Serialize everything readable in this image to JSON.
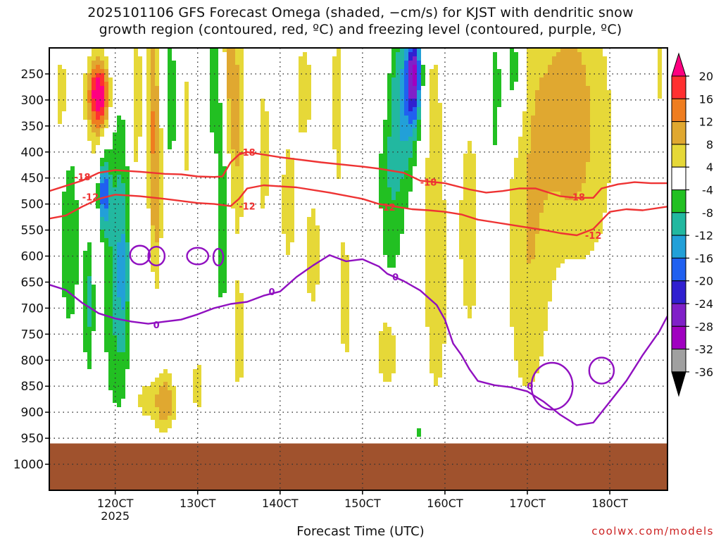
{
  "header": {
    "title_line1": "2025101106 GFS Forecast Omega (shaded, −cm/s) for KJST with dendritic snow",
    "title_line2": "growth region (contoured, red, ºC) and freezing level (contoured, purple, ºC)"
  },
  "footer": {
    "xlabel": "Forecast Time (UTC)",
    "source": "coolwx.com/models"
  },
  "chart_data": {
    "type": "heatmap",
    "x_ticks": [
      {
        "value": 120,
        "label": "120CT",
        "sublabel": "2025"
      },
      {
        "value": 130,
        "label": "130CT",
        "sublabel": ""
      },
      {
        "value": 140,
        "label": "140CT",
        "sublabel": ""
      },
      {
        "value": 150,
        "label": "150CT",
        "sublabel": ""
      },
      {
        "value": 160,
        "label": "160CT",
        "sublabel": ""
      },
      {
        "value": 170,
        "label": "170CT",
        "sublabel": ""
      },
      {
        "value": 180,
        "label": "180CT",
        "sublabel": ""
      }
    ],
    "xlim": [
      112,
      187
    ],
    "y_ticks": [
      250,
      300,
      350,
      400,
      450,
      500,
      550,
      600,
      650,
      700,
      750,
      800,
      850,
      900,
      950,
      1000
    ],
    "ylim": [
      200,
      1050
    ],
    "surface_level": 960,
    "colorbar": {
      "labels": [
        "20",
        "16",
        "12",
        "8",
        "4",
        "-4",
        "-8",
        "-12",
        "-16",
        "-20",
        "-24",
        "-28",
        "-32",
        "-36"
      ],
      "colors": [
        "#ff0080",
        "#ff3030",
        "#ef7d20",
        "#e0a830",
        "#e6d838",
        "#ffffff",
        "#22c022",
        "#22b8a0",
        "#22a0d8",
        "#2060f0",
        "#3020d0",
        "#8020c8",
        "#a000c0",
        "#a0a0a0",
        "#000000"
      ]
    },
    "omega_blobs": [
      {
        "x": 118,
        "p": 290,
        "sx": 0.9,
        "sp": 45,
        "v": 22
      },
      {
        "x": 118.5,
        "p": 420,
        "sx": 1.5,
        "sp": 180,
        "v": 6
      },
      {
        "x": 113.5,
        "p": 300,
        "sx": 0.7,
        "sp": 90,
        "v": 6
      },
      {
        "x": 120,
        "p": 560,
        "sx": 1.2,
        "sp": 220,
        "v": -12
      },
      {
        "x": 118.6,
        "p": 480,
        "sx": 0.5,
        "sp": 50,
        "v": -20
      },
      {
        "x": 114.5,
        "p": 560,
        "sx": 0.9,
        "sp": 140,
        "v": -8
      },
      {
        "x": 116.8,
        "p": 680,
        "sx": 0.5,
        "sp": 100,
        "v": -10
      },
      {
        "x": 122.5,
        "p": 300,
        "sx": 0.5,
        "sp": 120,
        "v": 8
      },
      {
        "x": 124.5,
        "p": 300,
        "sx": 0.6,
        "sp": 150,
        "v": 10
      },
      {
        "x": 125,
        "p": 500,
        "sx": 0.5,
        "sp": 130,
        "v": 8
      },
      {
        "x": 126,
        "p": 880,
        "sx": 0.9,
        "sp": 40,
        "v": 12
      },
      {
        "x": 123.5,
        "p": 880,
        "sx": 0.9,
        "sp": 40,
        "v": 5
      },
      {
        "x": 121,
        "p": 650,
        "sx": 0.5,
        "sp": 120,
        "v": -6
      },
      {
        "x": 126.8,
        "p": 300,
        "sx": 0.4,
        "sp": 90,
        "v": -8
      },
      {
        "x": 128.5,
        "p": 350,
        "sx": 0.5,
        "sp": 150,
        "v": 5
      },
      {
        "x": 132,
        "p": 280,
        "sx": 0.5,
        "sp": 80,
        "v": -8
      },
      {
        "x": 133,
        "p": 470,
        "sx": 0.5,
        "sp": 180,
        "v": -9
      },
      {
        "x": 134,
        "p": 250,
        "sx": 0.9,
        "sp": 150,
        "v": 10
      },
      {
        "x": 135,
        "p": 420,
        "sx": 0.6,
        "sp": 120,
        "v": 5
      },
      {
        "x": 130,
        "p": 850,
        "sx": 1.0,
        "sp": 60,
        "v": 5
      },
      {
        "x": 135,
        "p": 760,
        "sx": 0.6,
        "sp": 100,
        "v": 6
      },
      {
        "x": 138,
        "p": 400,
        "sx": 0.8,
        "sp": 160,
        "v": 5
      },
      {
        "x": 141,
        "p": 500,
        "sx": 1.0,
        "sp": 150,
        "v": 5
      },
      {
        "x": 143,
        "p": 280,
        "sx": 0.8,
        "sp": 80,
        "v": 6
      },
      {
        "x": 144,
        "p": 600,
        "sx": 0.8,
        "sp": 100,
        "v": 6
      },
      {
        "x": 147,
        "p": 300,
        "sx": 0.8,
        "sp": 200,
        "v": 5
      },
      {
        "x": 148,
        "p": 700,
        "sx": 0.8,
        "sp": 120,
        "v": 5
      },
      {
        "x": 153,
        "p": 780,
        "sx": 1.0,
        "sp": 60,
        "v": 8
      },
      {
        "x": 155.5,
        "p": 300,
        "sx": 1.1,
        "sp": 110,
        "v": -12
      },
      {
        "x": 156.3,
        "p": 250,
        "sx": 0.6,
        "sp": 60,
        "v": -22
      },
      {
        "x": 153.5,
        "p": 420,
        "sx": 1.2,
        "sp": 180,
        "v": -8
      },
      {
        "x": 152.5,
        "p": 250,
        "sx": 0.6,
        "sp": 80,
        "v": 5
      },
      {
        "x": 158.5,
        "p": 380,
        "sx": 1.3,
        "sp": 250,
        "v": 5
      },
      {
        "x": 159,
        "p": 720,
        "sx": 1.0,
        "sp": 150,
        "v": 4.5
      },
      {
        "x": 163,
        "p": 550,
        "sx": 1.5,
        "sp": 250,
        "v": 5
      },
      {
        "x": 166,
        "p": 320,
        "sx": 0.8,
        "sp": 150,
        "v": -6
      },
      {
        "x": 168.5,
        "p": 250,
        "sx": 1.0,
        "sp": 90,
        "v": -9
      },
      {
        "x": 170.5,
        "p": 350,
        "sx": 2.2,
        "sp": 220,
        "v": 7
      },
      {
        "x": 170,
        "p": 700,
        "sx": 2.0,
        "sp": 180,
        "v": 5
      },
      {
        "x": 175,
        "p": 330,
        "sx": 2.0,
        "sp": 150,
        "v": 8
      },
      {
        "x": 178,
        "p": 380,
        "sx": 3.0,
        "sp": 250,
        "v": 4.8
      },
      {
        "x": 186,
        "p": 250,
        "sx": 0.4,
        "sp": 80,
        "v": 4.8
      },
      {
        "x": 157,
        "p": 940,
        "sx": 0.4,
        "sp": 15,
        "v": -6
      },
      {
        "x": 170,
        "p": 940,
        "sx": 0.4,
        "sp": 15,
        "v": -6
      }
    ],
    "dgz_contours": [
      {
        "label": "-18",
        "label_positions": [
          [
            116,
            448
          ],
          [
            136,
            400
          ],
          [
            158,
            458
          ],
          [
            176,
            486
          ]
        ],
        "points": [
          [
            112,
            475
          ],
          [
            114,
            465
          ],
          [
            116,
            455
          ],
          [
            118,
            440
          ],
          [
            120,
            435
          ],
          [
            123,
            438
          ],
          [
            126,
            442
          ],
          [
            128,
            443
          ],
          [
            130,
            447
          ],
          [
            132,
            448
          ],
          [
            133,
            447
          ],
          [
            134,
            420
          ],
          [
            135,
            405
          ],
          [
            136,
            400
          ],
          [
            140,
            410
          ],
          [
            145,
            420
          ],
          [
            150,
            428
          ],
          [
            152,
            432
          ],
          [
            155,
            440
          ],
          [
            157,
            455
          ],
          [
            160,
            460
          ],
          [
            163,
            472
          ],
          [
            165,
            478
          ],
          [
            167,
            475
          ],
          [
            169,
            470
          ],
          [
            171,
            470
          ],
          [
            172,
            475
          ],
          [
            174,
            485
          ],
          [
            176,
            488
          ],
          [
            178,
            488
          ],
          [
            179,
            470
          ],
          [
            181,
            462
          ],
          [
            183,
            458
          ],
          [
            185,
            460
          ],
          [
            187,
            460
          ]
        ]
      },
      {
        "label": "-12",
        "label_positions": [
          [
            117,
            486
          ],
          [
            136,
            504
          ],
          [
            153,
            506
          ],
          [
            178,
            560
          ]
        ],
        "points": [
          [
            112,
            528
          ],
          [
            114,
            522
          ],
          [
            116,
            505
          ],
          [
            118,
            490
          ],
          [
            120,
            482
          ],
          [
            123,
            485
          ],
          [
            126,
            490
          ],
          [
            130,
            498
          ],
          [
            132,
            500
          ],
          [
            134,
            504
          ],
          [
            135,
            490
          ],
          [
            136,
            470
          ],
          [
            138,
            464
          ],
          [
            142,
            468
          ],
          [
            146,
            478
          ],
          [
            150,
            490
          ],
          [
            152,
            500
          ],
          [
            154,
            505
          ],
          [
            156,
            510
          ],
          [
            158,
            512
          ],
          [
            160,
            515
          ],
          [
            162,
            520
          ],
          [
            164,
            530
          ],
          [
            166,
            535
          ],
          [
            168,
            540
          ],
          [
            170,
            545
          ],
          [
            172,
            550
          ],
          [
            174,
            556
          ],
          [
            176,
            560
          ],
          [
            178,
            548
          ],
          [
            180,
            515
          ],
          [
            182,
            510
          ],
          [
            184,
            512
          ],
          [
            187,
            505
          ]
        ]
      }
    ],
    "freezing_contours": [
      {
        "label": "0",
        "label_positions": [
          [
            125,
            732
          ],
          [
            139,
            668
          ],
          [
            154,
            640
          ]
        ],
        "points": [
          [
            112,
            655
          ],
          [
            114,
            665
          ],
          [
            116,
            690
          ],
          [
            118,
            710
          ],
          [
            120,
            720
          ],
          [
            122,
            726
          ],
          [
            124,
            730
          ],
          [
            126,
            726
          ],
          [
            128,
            722
          ],
          [
            130,
            712
          ],
          [
            132,
            700
          ],
          [
            134,
            692
          ],
          [
            136,
            688
          ],
          [
            138,
            676
          ],
          [
            140,
            668
          ],
          [
            142,
            640
          ],
          [
            144,
            618
          ],
          [
            146,
            598
          ],
          [
            148,
            610
          ],
          [
            150,
            606
          ],
          [
            152,
            620
          ],
          [
            153,
            634
          ],
          [
            155,
            648
          ],
          [
            157,
            666
          ],
          [
            159,
            694
          ],
          [
            160,
            722
          ],
          [
            161,
            768
          ],
          [
            162,
            790
          ],
          [
            163,
            818
          ],
          [
            164,
            840
          ],
          [
            166,
            848
          ],
          [
            168,
            852
          ],
          [
            170,
            860
          ],
          [
            172,
            880
          ],
          [
            174,
            905
          ],
          [
            176,
            925
          ],
          [
            178,
            920
          ],
          [
            180,
            880
          ],
          [
            182,
            840
          ],
          [
            184,
            790
          ],
          [
            186,
            745
          ],
          [
            187,
            715
          ]
        ]
      }
    ],
    "freezing_loops": [
      {
        "label": "0",
        "center": [
          173,
          850
        ],
        "rx": 2.5,
        "ry": 45
      },
      {
        "label": "",
        "center": [
          179,
          820
        ],
        "rx": 1.5,
        "ry": 25
      },
      {
        "label": "",
        "center": [
          123,
          598
        ],
        "rx": 1.2,
        "ry": 18
      },
      {
        "label": "",
        "center": [
          125,
          600
        ],
        "rx": 1.0,
        "ry": 18
      },
      {
        "label": "",
        "center": [
          130,
          600
        ],
        "rx": 1.3,
        "ry": 16
      },
      {
        "label": "",
        "center": [
          132.5,
          602
        ],
        "rx": 0.6,
        "ry": 16
      }
    ]
  }
}
